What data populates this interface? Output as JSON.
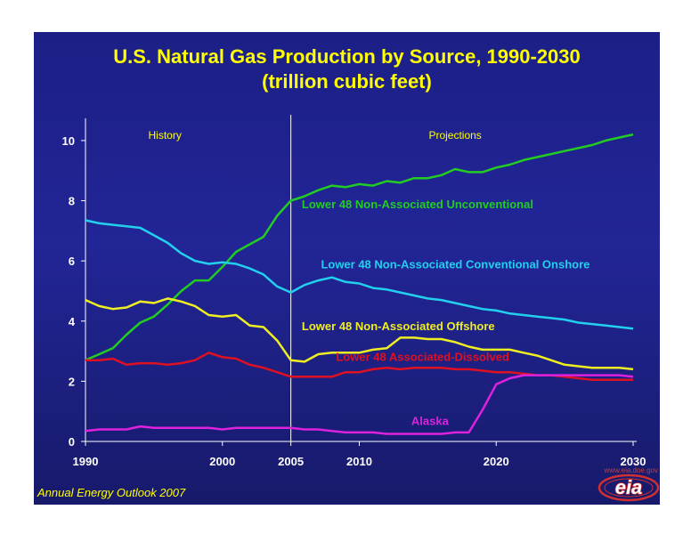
{
  "title_line1": "U.S. Natural Gas Production by Source, 1990-2030",
  "title_line2": "(trillion cubic feet)",
  "footer": "Annual Energy Outlook 2007",
  "logo": {
    "text": "eia",
    "url": "www.eia.doe.gov"
  },
  "colors": {
    "background": "#1f2290",
    "title": "#ffff00"
  },
  "chart_data": {
    "type": "line",
    "ylim": [
      0,
      10.5
    ],
    "xlim": [
      1990,
      2030
    ],
    "x_ticks": [
      1990,
      2000,
      2005,
      2010,
      2020,
      2030
    ],
    "y_ticks": [
      0,
      2,
      4,
      6,
      8,
      10
    ],
    "divider_x": 2005,
    "region_labels": [
      {
        "text": "History",
        "x": 1995.8,
        "y": 10.05
      },
      {
        "text": "Projections",
        "x": 2017,
        "y": 10.05
      }
    ],
    "x": [
      1990,
      1991,
      1992,
      1993,
      1994,
      1995,
      1996,
      1997,
      1998,
      1999,
      2000,
      2001,
      2002,
      2003,
      2004,
      2005,
      2006,
      2007,
      2008,
      2009,
      2010,
      2011,
      2012,
      2013,
      2014,
      2015,
      2016,
      2017,
      2018,
      2019,
      2020,
      2021,
      2022,
      2023,
      2024,
      2025,
      2026,
      2027,
      2028,
      2029,
      2030
    ],
    "series": [
      {
        "name": "Lower 48 Non-Associated Unconventional",
        "color": "#22cc22",
        "label_x": 2005.8,
        "label_y": 7.75,
        "values": [
          2.7,
          2.9,
          3.1,
          3.55,
          3.95,
          4.15,
          4.55,
          5.0,
          5.35,
          5.35,
          5.8,
          6.3,
          6.55,
          6.8,
          7.5,
          8.0,
          8.15,
          8.35,
          8.5,
          8.45,
          8.55,
          8.5,
          8.65,
          8.6,
          8.75,
          8.75,
          8.85,
          9.05,
          8.95,
          8.95,
          9.1,
          9.2,
          9.35,
          9.45,
          9.55,
          9.65,
          9.75,
          9.85,
          10.0,
          10.1,
          10.2
        ]
      },
      {
        "name": "Lower 48 Non-Associated Conventional Onshore",
        "color": "#22d0ee",
        "label_x": 2007.2,
        "label_y": 5.75,
        "values": [
          7.35,
          7.25,
          7.2,
          7.15,
          7.1,
          6.85,
          6.6,
          6.25,
          6.0,
          5.9,
          5.95,
          5.9,
          5.75,
          5.55,
          5.15,
          4.95,
          5.2,
          5.35,
          5.45,
          5.3,
          5.25,
          5.1,
          5.05,
          4.95,
          4.85,
          4.75,
          4.7,
          4.6,
          4.5,
          4.4,
          4.35,
          4.25,
          4.2,
          4.15,
          4.1,
          4.05,
          3.95,
          3.9,
          3.85,
          3.8,
          3.75
        ]
      },
      {
        "name": "Lower 48 Non-Associated Offshore",
        "color": "#eeee22",
        "label_x": 2005.8,
        "label_y": 3.7,
        "values": [
          4.7,
          4.5,
          4.4,
          4.45,
          4.65,
          4.6,
          4.75,
          4.65,
          4.5,
          4.2,
          4.15,
          4.2,
          3.85,
          3.8,
          3.35,
          2.7,
          2.65,
          2.9,
          2.95,
          2.95,
          2.95,
          3.05,
          3.1,
          3.45,
          3.45,
          3.4,
          3.4,
          3.3,
          3.15,
          3.05,
          3.05,
          3.05,
          2.95,
          2.85,
          2.7,
          2.55,
          2.5,
          2.45,
          2.45,
          2.45,
          2.4
        ]
      },
      {
        "name": "Lower 48 Associated-Dissolved",
        "color": "#dd1122",
        "label_x": 2008.3,
        "label_y": 2.68,
        "values": [
          2.7,
          2.7,
          2.75,
          2.55,
          2.6,
          2.6,
          2.55,
          2.6,
          2.7,
          2.95,
          2.8,
          2.75,
          2.55,
          2.45,
          2.3,
          2.15,
          2.15,
          2.15,
          2.15,
          2.3,
          2.3,
          2.4,
          2.45,
          2.4,
          2.45,
          2.45,
          2.45,
          2.4,
          2.4,
          2.35,
          2.3,
          2.3,
          2.25,
          2.2,
          2.2,
          2.15,
          2.1,
          2.05,
          2.05,
          2.05,
          2.05
        ]
      },
      {
        "name": "Alaska",
        "color": "#dd22dd",
        "label_x": 2013.8,
        "label_y": 0.55,
        "values": [
          0.35,
          0.4,
          0.4,
          0.4,
          0.5,
          0.45,
          0.45,
          0.45,
          0.45,
          0.45,
          0.4,
          0.45,
          0.45,
          0.45,
          0.45,
          0.45,
          0.4,
          0.4,
          0.35,
          0.3,
          0.3,
          0.3,
          0.25,
          0.25,
          0.25,
          0.25,
          0.25,
          0.3,
          0.3,
          1.05,
          1.9,
          2.1,
          2.2,
          2.2,
          2.2,
          2.2,
          2.2,
          2.2,
          2.2,
          2.2,
          2.15
        ]
      }
    ]
  }
}
